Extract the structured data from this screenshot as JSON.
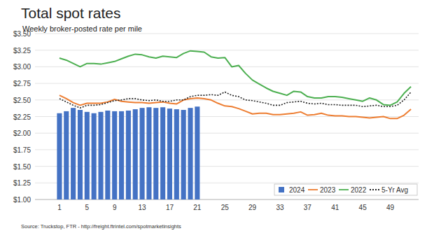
{
  "chart_data": {
    "type": "bar",
    "title": "Total spot rates",
    "subtitle": "Weekly broker-posted rate per mile",
    "source": "Source: Truckstop, FTR - http://freight.ftrintel.com/spotmarketinsights",
    "categories": [
      "1",
      null,
      null,
      null,
      "5",
      null,
      null,
      null,
      "9",
      null,
      null,
      null,
      "13",
      null,
      null,
      null,
      "17",
      null,
      null,
      null,
      "21",
      null,
      null,
      null,
      "25",
      null,
      null,
      null,
      "29",
      null,
      null,
      null,
      "33",
      null,
      null,
      null,
      "37",
      null,
      null,
      null,
      "41",
      null,
      null,
      null,
      "45",
      null,
      null,
      null,
      "49",
      null,
      null,
      null
    ],
    "ylim": [
      1.0,
      3.5
    ],
    "yticks": [
      {
        "value": 1.0,
        "label": "$1.00"
      },
      {
        "value": 1.25,
        "label": "$1.25"
      },
      {
        "value": 1.5,
        "label": "$1.50"
      },
      {
        "value": 1.75,
        "label": "$1.75"
      },
      {
        "value": 2.0,
        "label": "$2.00"
      },
      {
        "value": 2.25,
        "label": "$2.25"
      },
      {
        "value": 2.5,
        "label": "$2.50"
      },
      {
        "value": 2.75,
        "label": "$2.75"
      },
      {
        "value": 3.0,
        "label": "$3.00"
      },
      {
        "value": 3.25,
        "label": "$3.25"
      },
      {
        "value": 3.5,
        "label": "$3.50"
      }
    ],
    "grid": true,
    "legend": "lower right",
    "series": [
      {
        "name": "2024",
        "type": "bar",
        "color": "#4472c4",
        "values": [
          2.3,
          2.33,
          2.38,
          2.35,
          2.32,
          2.3,
          2.32,
          2.34,
          2.33,
          2.33,
          2.34,
          2.36,
          2.38,
          2.39,
          2.38,
          2.39,
          2.37,
          2.36,
          2.35,
          2.38,
          2.4,
          null,
          null,
          null,
          null,
          null,
          null,
          null,
          null,
          null,
          null,
          null,
          null,
          null,
          null,
          null,
          null,
          null,
          null,
          null,
          null,
          null,
          null,
          null,
          null,
          null,
          null,
          null,
          null,
          null,
          null,
          null
        ]
      },
      {
        "name": "2023",
        "type": "line",
        "color": "#ed7d31",
        "line_style": "solid",
        "values": [
          2.57,
          2.52,
          2.46,
          2.42,
          2.45,
          2.45,
          2.45,
          2.47,
          2.51,
          2.48,
          2.47,
          2.46,
          2.46,
          2.45,
          2.46,
          2.47,
          2.45,
          2.44,
          2.5,
          2.52,
          2.53,
          2.52,
          2.5,
          2.45,
          2.41,
          2.4,
          2.37,
          2.33,
          2.29,
          2.3,
          2.3,
          2.28,
          2.28,
          2.29,
          2.3,
          2.32,
          2.27,
          2.28,
          2.3,
          2.27,
          2.26,
          2.26,
          2.25,
          2.25,
          2.24,
          2.23,
          2.24,
          2.25,
          2.22,
          2.22,
          2.27,
          2.36
        ]
      },
      {
        "name": "2022",
        "type": "line",
        "color": "#4caf50",
        "line_style": "solid",
        "values": [
          3.13,
          3.1,
          3.05,
          3.0,
          3.05,
          3.05,
          3.04,
          3.06,
          3.08,
          3.12,
          3.16,
          3.19,
          3.18,
          3.15,
          3.13,
          3.16,
          3.15,
          3.14,
          3.2,
          3.24,
          3.23,
          3.22,
          3.15,
          3.13,
          3.14,
          3.0,
          3.02,
          2.9,
          2.8,
          2.74,
          2.68,
          2.63,
          2.6,
          2.57,
          2.63,
          2.62,
          2.55,
          2.53,
          2.53,
          2.55,
          2.55,
          2.54,
          2.52,
          2.5,
          2.48,
          2.53,
          2.5,
          2.43,
          2.42,
          2.47,
          2.6,
          2.7
        ]
      },
      {
        "name": "5-Yr Avg",
        "type": "line",
        "color": "#222222",
        "line_style": "dotted",
        "values": [
          2.52,
          2.47,
          2.42,
          2.38,
          2.42,
          2.42,
          2.43,
          2.46,
          2.49,
          2.5,
          2.52,
          2.52,
          2.5,
          2.49,
          2.5,
          2.48,
          2.48,
          2.5,
          2.5,
          2.55,
          2.57,
          2.57,
          2.58,
          2.57,
          2.62,
          2.57,
          2.55,
          2.5,
          2.49,
          2.47,
          2.45,
          2.42,
          2.42,
          2.46,
          2.47,
          2.48,
          2.45,
          2.44,
          2.45,
          2.43,
          2.43,
          2.42,
          2.42,
          2.42,
          2.4,
          2.41,
          2.42,
          2.4,
          2.4,
          2.42,
          2.5,
          2.62
        ]
      }
    ]
  }
}
